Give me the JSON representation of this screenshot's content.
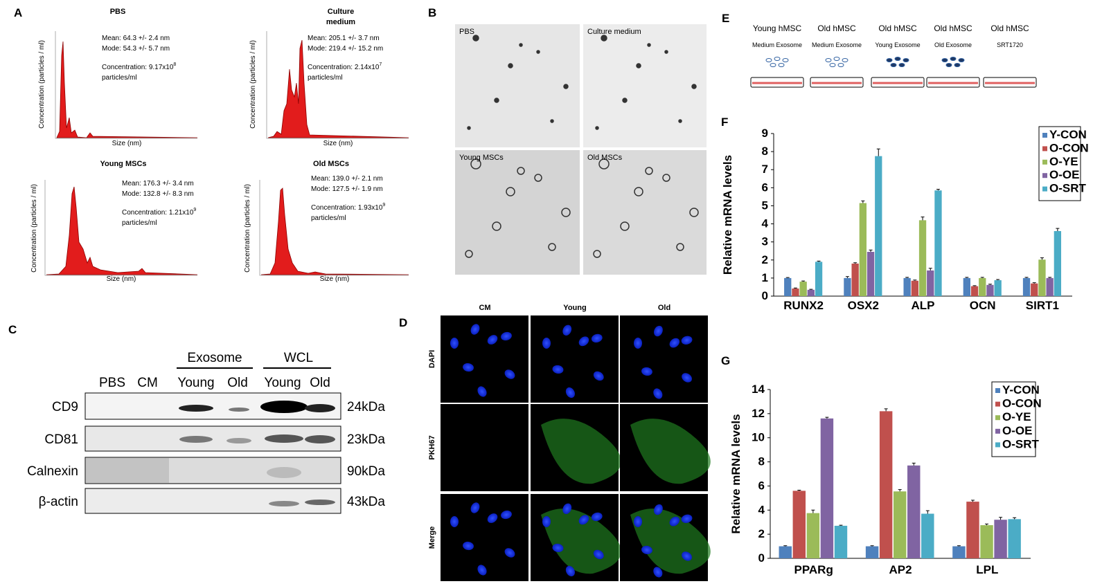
{
  "panel_a": {
    "letter": "A",
    "x_label": "Size (nm)",
    "y_label": "Concentration (particles / ml)",
    "plots": [
      {
        "title_lines": [
          "PBS"
        ],
        "mean": "Mean: 64.3 +/- 2.4 nm",
        "mode": "Mode: 54.3 +/- 5.7 nm",
        "concentration": "Concentration: 9.17x10",
        "exponent": "8",
        "unit": "particles/ml"
      },
      {
        "title_lines": [
          "Culture",
          "medium"
        ],
        "mean": "Mean: 205.1 +/- 3.7 nm",
        "mode": "Mode: 219.4 +/- 15.2 nm",
        "concentration": "Concentration: 2.14x10",
        "exponent": "7",
        "unit": "particles/ml"
      },
      {
        "title_lines": [
          "Young MSCs"
        ],
        "mean": "Mean: 176.3 +/- 3.4 nm",
        "mode": "Mode: 132.8 +/- 8.3 nm",
        "concentration": "Concentration: 1.21x10",
        "exponent": "9",
        "unit": "particles/ml"
      },
      {
        "title_lines": [
          "Old MSCs"
        ],
        "mean": "Mean: 139.0 +/- 2.1 nm",
        "mode": "Mode: 127.5 +/- 1.9 nm",
        "concentration": "Concentration: 1.93x10",
        "exponent": "9",
        "unit": "particles/ml"
      }
    ]
  },
  "panel_b": {
    "letter": "B",
    "labels": [
      "PBS",
      "Culture medium",
      "Young MSCs",
      "Old MSCs"
    ]
  },
  "panel_c": {
    "letter": "C",
    "groups": [
      "Exosome",
      "WCL"
    ],
    "lanes": [
      "PBS",
      "CM",
      "Young",
      "Old",
      "Young",
      "Old"
    ],
    "rows": [
      {
        "protein": "CD9",
        "size": "24kDa"
      },
      {
        "protein": "CD81",
        "size": "23kDa"
      },
      {
        "protein": "Calnexin",
        "size": "90kDa"
      },
      {
        "protein": "β-actin",
        "size": "43kDa"
      }
    ]
  },
  "panel_d": {
    "letter": "D",
    "columns": [
      "CM",
      "Young",
      "Old"
    ],
    "rows": [
      "DAPI",
      "PKH67",
      "Merge"
    ]
  },
  "panel_e": {
    "letter": "E",
    "groups": [
      {
        "cell": "Young hMSC",
        "treatment": "Medium Exosome"
      },
      {
        "cell": "Old hMSC",
        "treatment": "Medium Exosome"
      },
      {
        "cell": "Old hMSC",
        "treatment": "Young Exosome"
      },
      {
        "cell": "Old hMSC",
        "treatment": "Old Exosome"
      },
      {
        "cell": "Old hMSC",
        "treatment": "SRT1720"
      }
    ]
  },
  "chart_data": [
    {
      "type": "bar",
      "panel_label": "F",
      "y_label": "Relative mRNA levels",
      "categories": [
        "RUNX2",
        "OSX2",
        "ALP",
        "OCN",
        "SIRT1"
      ],
      "series": [
        {
          "name": "Y-CON",
          "color": "#4f81bd",
          "values": [
            1.0,
            1.0,
            1.0,
            1.0,
            1.0
          ],
          "errors": [
            0.03,
            0.08,
            0.04,
            0.04,
            0.04
          ]
        },
        {
          "name": "O-CON",
          "color": "#c0504d",
          "values": [
            0.42,
            1.8,
            0.85,
            0.55,
            0.7
          ],
          "errors": [
            0.03,
            0.05,
            0.04,
            0.03,
            0.04
          ]
        },
        {
          "name": "O-YE",
          "color": "#9bbb59",
          "values": [
            0.8,
            5.15,
            4.2,
            1.0,
            2.02
          ],
          "errors": [
            0.04,
            0.12,
            0.18,
            0.04,
            0.1
          ]
        },
        {
          "name": "O-OE",
          "color": "#8064a2",
          "values": [
            0.35,
            2.45,
            1.42,
            0.62,
            1.0
          ],
          "errors": [
            0.03,
            0.1,
            0.12,
            0.04,
            0.04
          ]
        },
        {
          "name": "O-SRT",
          "color": "#4bacc6",
          "values": [
            1.9,
            7.75,
            5.85,
            0.88,
            3.6
          ],
          "errors": [
            0.04,
            0.4,
            0.06,
            0.04,
            0.15
          ]
        }
      ],
      "ylim": [
        0,
        9
      ],
      "yticks": [
        0,
        1,
        2,
        3,
        4,
        5,
        6,
        7,
        8,
        9
      ],
      "grid": false,
      "legend": "top-right"
    },
    {
      "type": "bar",
      "panel_label": "G",
      "y_label": "Relative mRNA levels",
      "categories": [
        "PPARg",
        "AP2",
        "LPL"
      ],
      "series": [
        {
          "name": "Y-CON",
          "color": "#4f81bd",
          "values": [
            1.0,
            1.0,
            1.0
          ],
          "errors": [
            0.05,
            0.05,
            0.05
          ]
        },
        {
          "name": "O-CON",
          "color": "#c0504d",
          "values": [
            5.6,
            12.2,
            4.7
          ],
          "errors": [
            0.05,
            0.2,
            0.12
          ]
        },
        {
          "name": "O-YE",
          "color": "#9bbb59",
          "values": [
            3.75,
            5.55,
            2.75
          ],
          "errors": [
            0.25,
            0.15,
            0.1
          ]
        },
        {
          "name": "O-OE",
          "color": "#8064a2",
          "values": [
            11.6,
            7.7,
            3.2
          ],
          "errors": [
            0.1,
            0.2,
            0.2
          ]
        },
        {
          "name": "O-SRT",
          "color": "#4bacc6",
          "values": [
            2.7,
            3.7,
            3.25
          ],
          "errors": [
            0.05,
            0.25,
            0.12
          ]
        }
      ],
      "ylim": [
        0,
        14
      ],
      "yticks": [
        0,
        2,
        4,
        6,
        8,
        10,
        12,
        14
      ],
      "grid": false,
      "legend": "top-right"
    }
  ]
}
